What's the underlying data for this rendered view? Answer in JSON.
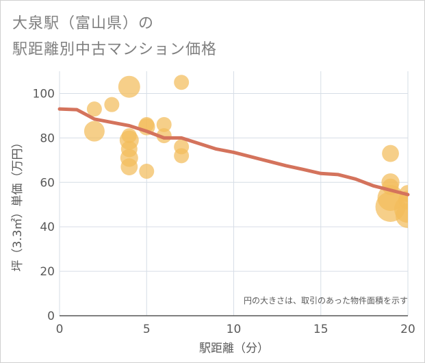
{
  "title_lines": [
    "大泉駅（富山県）の",
    "駅距離別中古マンション価格"
  ],
  "chart_data": {
    "type": "scatter",
    "xlabel": "駅距離（分）",
    "ylabel": "坪（3.3㎡）単価（万円）",
    "xlim": [
      0,
      20
    ],
    "ylim": [
      0,
      110
    ],
    "xticks": [
      0,
      5,
      10,
      15,
      20
    ],
    "yticks": [
      0,
      20,
      40,
      60,
      80,
      100
    ],
    "grid": true,
    "note": "円の大きさは、取引のあった物件面積を示す",
    "colors": {
      "bubble": "#f3bd5b",
      "line": "#d4735c",
      "grid": "#d6dde6",
      "text": "#595959"
    },
    "points": [
      {
        "x": 2,
        "y": 93,
        "size": 55
      },
      {
        "x": 2,
        "y": 83,
        "size": 75
      },
      {
        "x": 3,
        "y": 95,
        "size": 55
      },
      {
        "x": 4,
        "y": 103,
        "size": 80
      },
      {
        "x": 4,
        "y": 81,
        "size": 55
      },
      {
        "x": 4,
        "y": 79,
        "size": 70
      },
      {
        "x": 4,
        "y": 75,
        "size": 60
      },
      {
        "x": 4,
        "y": 71,
        "size": 65
      },
      {
        "x": 4,
        "y": 67,
        "size": 62
      },
      {
        "x": 5,
        "y": 86,
        "size": 55
      },
      {
        "x": 5,
        "y": 85,
        "size": 62
      },
      {
        "x": 5,
        "y": 65,
        "size": 55
      },
      {
        "x": 6,
        "y": 86,
        "size": 55
      },
      {
        "x": 6,
        "y": 81,
        "size": 55
      },
      {
        "x": 7,
        "y": 105,
        "size": 55
      },
      {
        "x": 7,
        "y": 76,
        "size": 55
      },
      {
        "x": 7,
        "y": 72,
        "size": 55
      },
      {
        "x": 19,
        "y": 73,
        "size": 62
      },
      {
        "x": 19,
        "y": 60,
        "size": 66
      },
      {
        "x": 19,
        "y": 58,
        "size": 60
      },
      {
        "x": 19,
        "y": 53,
        "size": 95
      },
      {
        "x": 19,
        "y": 49,
        "size": 110
      },
      {
        "x": 20,
        "y": 55,
        "size": 62
      },
      {
        "x": 20,
        "y": 52,
        "size": 70
      },
      {
        "x": 20,
        "y": 48,
        "size": 100
      },
      {
        "x": 20,
        "y": 45,
        "size": 90
      }
    ],
    "trend": {
      "x": [
        0,
        1,
        2,
        3,
        4,
        5,
        6,
        7,
        8,
        9,
        10,
        11,
        12,
        13,
        14,
        15,
        16,
        17,
        18,
        19,
        20
      ],
      "y": [
        93,
        92.7,
        88.5,
        87,
        85.5,
        83,
        80,
        80,
        77.5,
        75,
        73.5,
        71.5,
        69.5,
        67.5,
        65.8,
        64,
        63.5,
        61.5,
        58.5,
        56.5,
        54.5
      ]
    }
  }
}
